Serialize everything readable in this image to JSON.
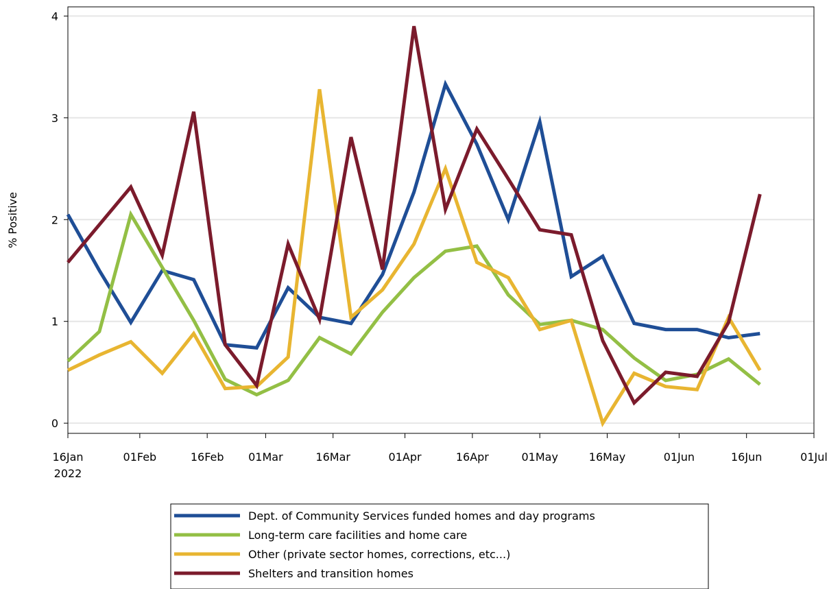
{
  "chart_data": {
    "type": "line",
    "y_label": "% Positive",
    "x": [
      "2022-01-16",
      "2022-01-23",
      "2022-01-30",
      "2022-02-06",
      "2022-02-13",
      "2022-02-20",
      "2022-02-27",
      "2022-03-06",
      "2022-03-13",
      "2022-03-20",
      "2022-03-27",
      "2022-04-03",
      "2022-04-10",
      "2022-04-17",
      "2022-04-24",
      "2022-05-01",
      "2022-05-08",
      "2022-05-15",
      "2022-05-22",
      "2022-05-29",
      "2022-06-05",
      "2022-06-12",
      "2022-06-19"
    ],
    "series": [
      {
        "name": "Dept. of Community Services funded homes and day programs",
        "color": "#1f4e96",
        "values": [
          2.05,
          1.5,
          0.99,
          1.5,
          1.41,
          0.77,
          0.74,
          1.33,
          1.04,
          0.98,
          1.46,
          2.27,
          3.33,
          2.74,
          2.0,
          2.96,
          1.44,
          1.64,
          0.98,
          0.92,
          0.92,
          0.84,
          0.88
        ]
      },
      {
        "name": "Long-term care facilities and home care",
        "color": "#93bf45",
        "values": [
          0.61,
          0.9,
          2.05,
          1.53,
          1.01,
          0.43,
          0.28,
          0.42,
          0.84,
          0.68,
          1.09,
          1.43,
          1.69,
          1.74,
          1.26,
          0.97,
          1.01,
          0.92,
          0.64,
          0.42,
          0.48,
          0.63,
          0.38
        ]
      },
      {
        "name": "Other (private sector homes, corrections, etc...)",
        "color": "#e8b531",
        "values": [
          0.52,
          0.67,
          0.8,
          0.49,
          0.88,
          0.34,
          0.36,
          0.65,
          3.28,
          1.04,
          1.31,
          1.76,
          2.5,
          1.58,
          1.43,
          0.92,
          1.01,
          0,
          0.49,
          0.36,
          0.33,
          1.04,
          0.52
        ]
      },
      {
        "name": "Shelters and transition homes",
        "color": "#7b1b2c",
        "values": [
          1.58,
          1.95,
          2.32,
          1.65,
          3.06,
          0.77,
          0.37,
          1.76,
          1.02,
          2.81,
          1.51,
          3.9,
          2.1,
          2.89,
          2.4,
          1.9,
          1.85,
          0.81,
          0.2,
          0.5,
          0.46,
          0.99,
          2.25
        ]
      }
    ],
    "xlim": [
      "2022-01-16",
      "2022-07-01"
    ],
    "xticks": [
      {
        "value": "2022-01-16",
        "label": "16Jan\n2022"
      },
      {
        "value": "2022-02-01",
        "label": "01Feb"
      },
      {
        "value": "2022-02-16",
        "label": "16Feb"
      },
      {
        "value": "2022-03-01",
        "label": "01Mar"
      },
      {
        "value": "2022-03-16",
        "label": "16Mar"
      },
      {
        "value": "2022-04-01",
        "label": "01Apr"
      },
      {
        "value": "2022-04-16",
        "label": "16Apr"
      },
      {
        "value": "2022-05-01",
        "label": "01May"
      },
      {
        "value": "2022-05-16",
        "label": "16May"
      },
      {
        "value": "2022-06-01",
        "label": "01Jun"
      },
      {
        "value": "2022-06-16",
        "label": "16Jun"
      },
      {
        "value": "2022-07-01",
        "label": "01Jul"
      }
    ],
    "ylim": [
      -0.1,
      4.09
    ],
    "yticks": [
      0,
      1,
      2,
      3,
      4
    ],
    "grid": true
  }
}
